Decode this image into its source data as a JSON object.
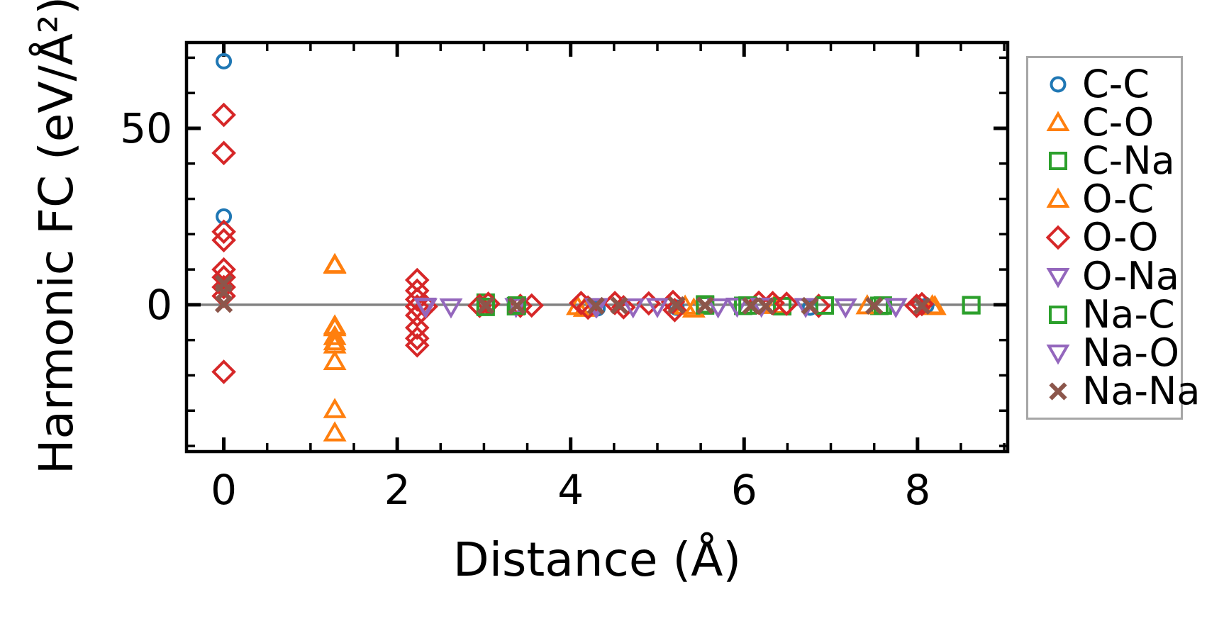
{
  "figure": {
    "background": "#ffffff"
  },
  "chart_data": {
    "type": "scatter",
    "title": "",
    "xlabel": "Distance (Å)",
    "ylabel": "Harmonic FC (eV/Å²)",
    "xlim": [
      -0.43,
      9.04
    ],
    "ylim": [
      -41.6,
      74.3
    ],
    "x_major_ticks": [
      0,
      2,
      4,
      6,
      8
    ],
    "x_minor_tick_step": 0.5,
    "y_major_ticks": [
      0,
      50
    ],
    "y_minor_tick_step": 10,
    "grid": false,
    "zero_line": {
      "y": 0,
      "color": "#808080"
    },
    "legend_position": "outside-right",
    "axis_color": "#000000",
    "series": [
      {
        "name": "C-C",
        "marker": "circle",
        "color": "#1f77b4",
        "points": [
          [
            0,
            69
          ],
          [
            0,
            25
          ],
          [
            4.31,
            -1.0
          ],
          [
            5.22,
            -0.8
          ],
          [
            6.76,
            -0.8
          ],
          [
            8.1,
            -0.3
          ]
        ]
      },
      {
        "name": "C-O",
        "marker": "triangle-up",
        "color": "#ff7f0e",
        "points": [
          [
            1.28,
            11.4
          ],
          [
            1.28,
            -6.0
          ],
          [
            1.28,
            -9.0
          ],
          [
            1.28,
            -16.1
          ],
          [
            1.28,
            -29.7
          ],
          [
            4.08,
            -0.5
          ],
          [
            5.32,
            -0.4
          ],
          [
            6.35,
            -0.2
          ],
          [
            8.17,
            -0.3
          ]
        ]
      },
      {
        "name": "C-Na",
        "marker": "square",
        "color": "#2ca02c",
        "points": [
          [
            3.02,
            0.6
          ],
          [
            3.37,
            -0.4
          ],
          [
            5.55,
            -0.2
          ],
          [
            5.99,
            -0.3
          ],
          [
            6.44,
            -0.4
          ],
          [
            7.56,
            -0.3
          ],
          [
            8.62,
            -0.15
          ]
        ]
      },
      {
        "name": "O-C",
        "marker": "triangle-up",
        "color": "#ff7f0e",
        "points": [
          [
            1.28,
            11.2
          ],
          [
            1.28,
            -6.5
          ],
          [
            1.28,
            -10.5
          ],
          [
            1.28,
            -11.4
          ],
          [
            1.28,
            -36.3
          ],
          [
            4.16,
            -1.0
          ],
          [
            5.42,
            -1.2
          ],
          [
            7.42,
            -0.3
          ],
          [
            8.2,
            -0.5
          ]
        ]
      },
      {
        "name": "O-O",
        "marker": "diamond",
        "color": "#d62728",
        "points": [
          [
            0,
            53.8
          ],
          [
            0,
            43.0
          ],
          [
            0,
            20.7
          ],
          [
            0,
            18.3
          ],
          [
            0,
            10.0
          ],
          [
            0,
            7.8
          ],
          [
            0,
            5.0
          ],
          [
            0,
            2.5
          ],
          [
            0,
            -19.0
          ],
          [
            2.23,
            7.0
          ],
          [
            2.23,
            4.0
          ],
          [
            2.23,
            1.5
          ],
          [
            2.23,
            -0.5
          ],
          [
            2.23,
            -3.0
          ],
          [
            2.23,
            -6.5
          ],
          [
            2.23,
            -9.5
          ],
          [
            2.23,
            -11.5
          ],
          [
            2.33,
            -0.5
          ],
          [
            2.95,
            -0.3
          ],
          [
            3.05,
            0.3
          ],
          [
            3.42,
            -0.3
          ],
          [
            3.55,
            -0.2
          ],
          [
            4.12,
            0.5
          ],
          [
            4.2,
            -0.8
          ],
          [
            4.51,
            0.5
          ],
          [
            4.61,
            -0.7
          ],
          [
            4.9,
            0.4
          ],
          [
            5.18,
            0.8
          ],
          [
            5.2,
            -1.5
          ],
          [
            6.17,
            0.6
          ],
          [
            6.33,
            0.5
          ],
          [
            6.49,
            0.3
          ],
          [
            6.86,
            -0.3
          ],
          [
            7.99,
            -0.3
          ],
          [
            8.05,
            0.2
          ]
        ]
      },
      {
        "name": "O-Na",
        "marker": "triangle-down",
        "color": "#9467bd",
        "points": [
          [
            2.32,
            -0.4
          ],
          [
            3.37,
            -0.5
          ],
          [
            4.29,
            -0.5
          ],
          [
            5.0,
            -0.5
          ],
          [
            5.92,
            -0.4
          ],
          [
            6.71,
            -0.5
          ],
          [
            7.17,
            -0.6
          ]
        ]
      },
      {
        "name": "Na-C",
        "marker": "square",
        "color": "#2ca02c",
        "points": [
          [
            3.02,
            -0.6
          ],
          [
            3.38,
            -0.2
          ],
          [
            5.55,
            0.1
          ],
          [
            6.04,
            -0.2
          ],
          [
            6.93,
            -0.2
          ],
          [
            7.6,
            -0.2
          ],
          [
            8.62,
            -0.1
          ]
        ]
      },
      {
        "name": "Na-O",
        "marker": "triangle-down",
        "color": "#9467bd",
        "points": [
          [
            2.33,
            -0.6
          ],
          [
            2.62,
            -0.6
          ],
          [
            4.3,
            -0.6
          ],
          [
            4.72,
            -0.6
          ],
          [
            5.7,
            -0.6
          ],
          [
            6.2,
            -0.4
          ],
          [
            7.75,
            -0.5
          ]
        ]
      },
      {
        "name": "Na-Na",
        "marker": "x",
        "color": "#8c564b",
        "points": [
          [
            0,
            6.0
          ],
          [
            0,
            3.5
          ],
          [
            0,
            0.2
          ],
          [
            3.02,
            -0.2
          ],
          [
            3.38,
            -0.3
          ],
          [
            4.29,
            -0.3
          ],
          [
            4.56,
            -0.2
          ],
          [
            5.22,
            -0.1
          ],
          [
            5.55,
            -0.2
          ],
          [
            6.08,
            -0.3
          ],
          [
            6.25,
            -0.4
          ],
          [
            6.76,
            -0.3
          ],
          [
            7.5,
            -0.3
          ],
          [
            8.05,
            -0.3
          ]
        ]
      }
    ]
  }
}
